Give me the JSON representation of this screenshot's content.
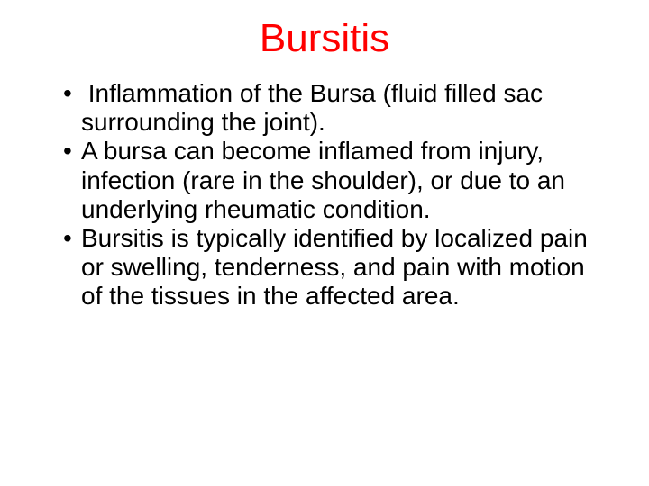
{
  "slide": {
    "title": "Bursitis",
    "title_color": "#ff0000",
    "title_fontsize": 44,
    "body_color": "#000000",
    "body_fontsize": 28,
    "background_color": "#ffffff",
    "bullets": [
      " Inflammation of the Bursa (fluid filled sac surrounding the joint).",
      "A bursa can become inflamed from injury, infection (rare in the shoulder), or due to an underlying rheumatic condition.",
      "Bursitis is typically identified by localized pain or swelling, tenderness, and pain with motion of the tissues in the affected area."
    ]
  }
}
